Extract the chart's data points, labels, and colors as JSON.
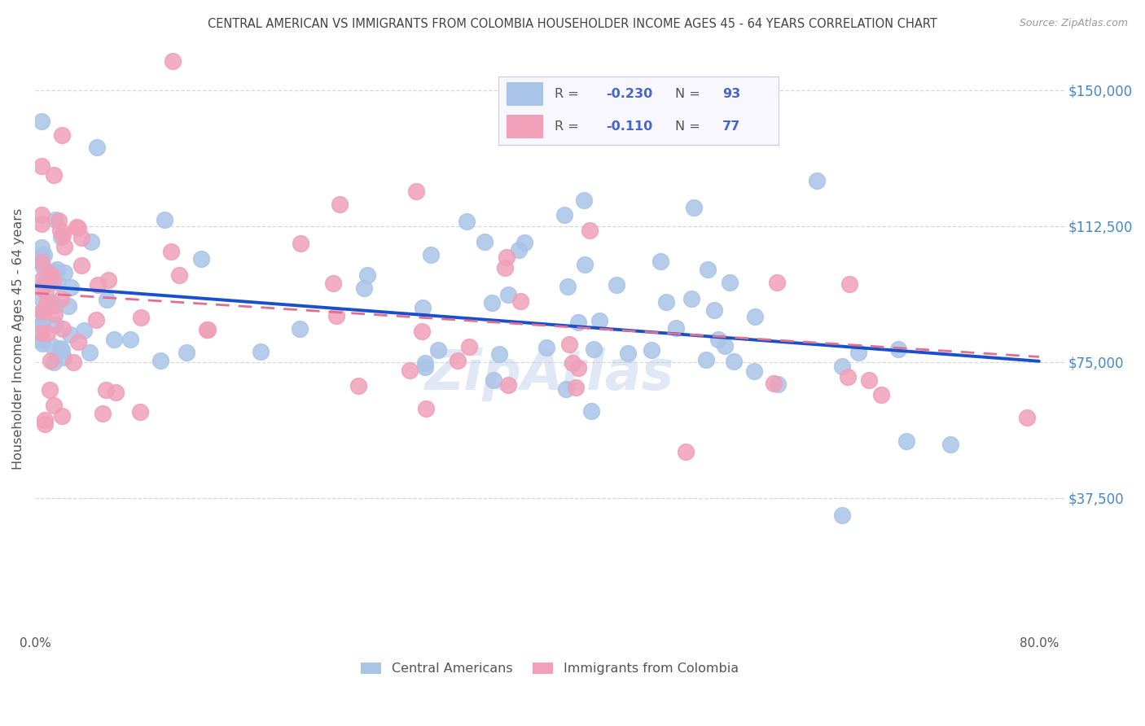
{
  "title": "CENTRAL AMERICAN VS IMMIGRANTS FROM COLOMBIA HOUSEHOLDER INCOME AGES 45 - 64 YEARS CORRELATION CHART",
  "source": "Source: ZipAtlas.com",
  "ylabel": "Householder Income Ages 45 - 64 years",
  "ytick_labels": [
    "$37,500",
    "$75,000",
    "$112,500",
    "$150,000"
  ],
  "ytick_values": [
    37500,
    75000,
    112500,
    150000
  ],
  "ylim": [
    0,
    162500
  ],
  "xlim": [
    0.0,
    0.82
  ],
  "legend_label_blue": "Central Americans",
  "legend_label_pink": "Immigrants from Colombia",
  "watermark": "ZipAtlas",
  "color_blue": "#aac4e8",
  "color_pink": "#f0a0b8",
  "line_blue": "#1a4fcc",
  "line_pink": "#e07090",
  "title_color": "#444444",
  "tick_color_right": "#4488cc",
  "background_color": "#ffffff",
  "grid_color": "#d8d8d8",
  "grid_style": "--",
  "legend_R_blue": "-0.230",
  "legend_N_blue": "93",
  "legend_R_pink": "-0.110",
  "legend_N_pink": "77",
  "legend_text_dark": "#555555",
  "legend_text_blue": "#4466cc",
  "line_intercept_blue": 96000,
  "line_slope_blue": -26000,
  "line_intercept_pink": 94000,
  "line_slope_pink": -22000,
  "seed_blue": 12,
  "seed_pink": 37,
  "n_blue": 93,
  "n_pink": 77
}
